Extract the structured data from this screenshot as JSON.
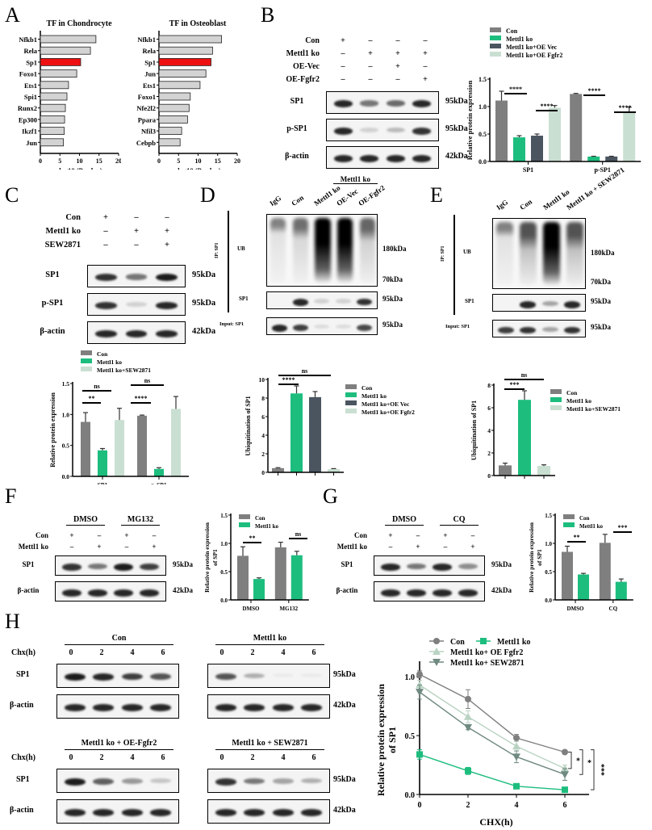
{
  "panels": {
    "A": {
      "label": "A"
    },
    "B": {
      "label": "B"
    },
    "C": {
      "label": "C"
    },
    "D": {
      "label": "D"
    },
    "E": {
      "label": "E"
    },
    "F": {
      "label": "F"
    },
    "G": {
      "label": "G"
    },
    "H": {
      "label": "H"
    }
  },
  "blots": {
    "B": {
      "conditions": [
        {
          "name": "Con",
          "signs": [
            "+",
            "–",
            "–",
            "–"
          ]
        },
        {
          "name": "Mettl1 ko",
          "signs": [
            "–",
            "+",
            "+",
            "+"
          ]
        },
        {
          "name": "OE-Vec",
          "signs": [
            "–",
            "–",
            "+",
            "–"
          ]
        },
        {
          "name": "OE-Fgfr2",
          "signs": [
            "–",
            "–",
            "–",
            "+"
          ]
        }
      ],
      "rows": [
        {
          "name": "SP1",
          "kda": "95kDa",
          "intensity": [
            0.9,
            0.55,
            0.6,
            0.9
          ]
        },
        {
          "name": "p-SP1",
          "kda": "95kDa",
          "intensity": [
            0.9,
            0.15,
            0.25,
            0.85
          ]
        },
        {
          "name": "β-actin",
          "kda": "42kDa",
          "intensity": [
            0.9,
            0.9,
            0.9,
            0.9
          ]
        }
      ]
    },
    "C": {
      "conditions": [
        {
          "name": "Con",
          "signs": [
            "+",
            "–",
            "–"
          ]
        },
        {
          "name": "Mettl1 ko",
          "signs": [
            "–",
            "+",
            "+"
          ]
        },
        {
          "name": "SEW2871",
          "signs": [
            "–",
            "–",
            "+"
          ]
        }
      ],
      "rows": [
        {
          "name": "SP1",
          "kda": "95kDa",
          "intensity": [
            0.85,
            0.55,
            0.95
          ]
        },
        {
          "name": "p-SP1",
          "kda": "95kDa",
          "intensity": [
            0.85,
            0.15,
            0.9
          ]
        },
        {
          "name": "β-actin",
          "kda": "42kDa",
          "intensity": [
            0.9,
            0.9,
            0.9
          ]
        }
      ]
    },
    "D": {
      "lanes": [
        "IgG",
        "Con",
        "Mettl1 ko",
        "OE-Vec",
        "OE-Fgfr2"
      ],
      "group_label": "Mettl1 ko",
      "ip_label": "IP: SP1",
      "ub_label": "UB",
      "sp1_label": "SP1",
      "input_label": "Input: SP1",
      "kda_180": "180kDa",
      "kda_70": "70kDa",
      "kda_95a": "95kDa",
      "kda_95b": "95kDa"
    },
    "E": {
      "lanes": [
        "IgG",
        "Con",
        "Mettl1 ko",
        "Mettl1 ko + SEW2871"
      ],
      "ip_label": "IP: SP1",
      "ub_label": "UB",
      "sp1_label": "SP1",
      "input_label": "Input: SP1",
      "kda_180": "180kDa",
      "kda_70": "70kDa",
      "kda_95a": "95kDa",
      "kda_95b": "95kDa"
    },
    "F": {
      "groups": [
        "DMSO",
        "MG132"
      ],
      "conditions": [
        {
          "name": "Con",
          "signs": [
            "+",
            "–",
            "+",
            "–"
          ]
        },
        {
          "name": "Mettl1 ko",
          "signs": [
            "–",
            "+",
            "–",
            "+"
          ]
        }
      ],
      "rows": [
        {
          "name": "SP1",
          "kda": "95kDa"
        },
        {
          "name": "β-actin",
          "kda": "42kDa"
        }
      ]
    },
    "G": {
      "groups": [
        "DMSO",
        "CQ"
      ],
      "conditions": [
        {
          "name": "Con",
          "signs": [
            "+",
            "–",
            "+",
            "–"
          ]
        },
        {
          "name": "Mettl1 ko",
          "signs": [
            "–",
            "+",
            "–",
            "+"
          ]
        }
      ],
      "rows": [
        {
          "name": "SP1",
          "kda": "95kDa"
        },
        {
          "name": "β-actin",
          "kda": "42kDa"
        }
      ]
    },
    "H": {
      "chx_label": "Chx(h)",
      "timepoints": [
        "0",
        "2",
        "4",
        "6"
      ],
      "groups": [
        "Con",
        "Mettl1 ko",
        "Mettl1 ko + OE-Fgfr2",
        "Mettl1 ko + SEW2871"
      ],
      "row_sp1": "SP1",
      "row_actin": "β-actin",
      "kda_sp1": "95kDa",
      "kda_actin": "42kDa"
    }
  },
  "colors": {
    "con": "#7f7f7f",
    "ko": "#1dbd7e",
    "ko_vec": "#4a5560",
    "ko_rescue": "#c9dfd2",
    "highlight": "#ee1111",
    "tf_bar": "#d3d3d3"
  },
  "chart_data": [
    {
      "id": "A-left",
      "type": "bar",
      "orientation": "horizontal",
      "title": "TF in Chondrocyte",
      "categories": [
        "Nfkb1",
        "Rela",
        "Sp1",
        "Foxo1",
        "Ets1",
        "Spi1",
        "Runx2",
        "Ep300",
        "Ikzf1",
        "Jun"
      ],
      "values": [
        14.2,
        12.8,
        10.3,
        9.3,
        7.2,
        6.8,
        6.4,
        6.2,
        6.1,
        5.9
      ],
      "highlight": "Sp1",
      "xlabel": "-log10 (P value)",
      "xlim": [
        0,
        20
      ],
      "xticks": [
        0,
        5,
        10,
        15,
        20
      ]
    },
    {
      "id": "A-right",
      "type": "bar",
      "orientation": "horizontal",
      "title": "TF in Osteoblast",
      "categories": [
        "Nfkb1",
        "Rela",
        "Sp1",
        "Jun",
        "Ets1",
        "Foxo1",
        "Nfe2l2",
        "Ppara",
        "Nfil3",
        "Cebpb"
      ],
      "values": [
        16.0,
        13.7,
        13.3,
        12.0,
        10.5,
        8.0,
        7.7,
        7.3,
        5.8,
        5.4
      ],
      "highlight": "Sp1",
      "xlabel": "-log10 (P value)",
      "xlim": [
        0,
        20
      ],
      "xticks": [
        0,
        5,
        10,
        15,
        20
      ]
    },
    {
      "id": "B",
      "type": "bar",
      "categories": [
        "SP1",
        "p-SP1"
      ],
      "series": [
        {
          "name": "Con",
          "values": [
            1.11,
            1.23
          ],
          "err": [
            0.17,
            0.01
          ]
        },
        {
          "name": "Mettl1 ko",
          "values": [
            0.44,
            0.09
          ],
          "err": [
            0.03,
            0.005
          ]
        },
        {
          "name": "Mettl1 ko+OE Vec",
          "values": [
            0.47,
            0.09
          ],
          "err": [
            0.03,
            0.005
          ]
        },
        {
          "name": "Mettl1 ko+OE Fgfr2",
          "values": [
            0.98,
            0.91
          ],
          "err": [
            0.04,
            0.08
          ]
        }
      ],
      "ylabel": "Relative protein expression",
      "ylim": [
        0,
        1.5
      ],
      "yticks": [
        0.0,
        0.5,
        1.0,
        1.5
      ],
      "annotations": [
        "****",
        "****",
        "****",
        "****"
      ]
    },
    {
      "id": "C",
      "type": "bar",
      "categories": [
        "SP1",
        "p-SP1"
      ],
      "series": [
        {
          "name": "Con",
          "values": [
            0.88,
            0.98
          ],
          "err": [
            0.15,
            0.01
          ]
        },
        {
          "name": "Mettl1 ko",
          "values": [
            0.42,
            0.12
          ],
          "err": [
            0.03,
            0.02
          ]
        },
        {
          "name": "Mettl1 ko+SEW2871",
          "values": [
            0.91,
            1.09
          ],
          "err": [
            0.19,
            0.2
          ]
        }
      ],
      "ylabel": "Relative protein expression",
      "ylim": [
        0,
        1.5
      ],
      "yticks": [
        0.0,
        0.5,
        1.0,
        1.5
      ],
      "annotations": [
        "**",
        "ns",
        "****",
        "ns"
      ]
    },
    {
      "id": "D",
      "type": "bar",
      "categories": [
        "Con",
        "Mettl1 ko",
        "Mettl1 ko+OE Vec",
        "Mettl1 ko+OE Fgfr2"
      ],
      "values": [
        0.45,
        8.5,
        8.1,
        0.35
      ],
      "err": [
        0.05,
        0.8,
        0.6,
        0.05
      ],
      "ylabel": "Ubiquitination of SP1",
      "ylim": [
        0,
        10
      ],
      "yticks": [
        0,
        2,
        4,
        6,
        8,
        10
      ],
      "annotations": [
        "****",
        "ns"
      ]
    },
    {
      "id": "E",
      "type": "bar",
      "categories": [
        "Con",
        "Mettl1 ko",
        "Mettl1 ko+SEW2871"
      ],
      "values": [
        0.9,
        6.7,
        0.85
      ],
      "err": [
        0.2,
        0.8,
        0.1
      ],
      "ylabel": "Ubiquitination of SP1",
      "ylim": [
        0,
        8
      ],
      "yticks": [
        0,
        2,
        4,
        6,
        8
      ],
      "annotations": [
        "***",
        "ns"
      ]
    },
    {
      "id": "F",
      "type": "bar",
      "categories": [
        "DMSO",
        "MG132"
      ],
      "series": [
        {
          "name": "Con",
          "values": [
            0.78,
            0.93
          ],
          "err": [
            0.16,
            0.09
          ]
        },
        {
          "name": "Mettl1 ko",
          "values": [
            0.37,
            0.79
          ],
          "err": [
            0.02,
            0.07
          ]
        }
      ],
      "ylabel": "Relative protein expression of SP1",
      "ylim": [
        0,
        1.5
      ],
      "yticks": [
        0.0,
        0.5,
        1.0,
        1.5
      ],
      "annotations": [
        "**",
        "ns"
      ]
    },
    {
      "id": "G",
      "type": "bar",
      "categories": [
        "DMSO",
        "CQ"
      ],
      "series": [
        {
          "name": "Con",
          "values": [
            0.85,
            1.01
          ],
          "err": [
            0.1,
            0.15
          ]
        },
        {
          "name": "Mettl1 ko",
          "values": [
            0.45,
            0.32
          ],
          "err": [
            0.02,
            0.05
          ]
        }
      ],
      "ylabel": "Relative protein expression of SP1",
      "ylim": [
        0,
        1.5
      ],
      "yticks": [
        0.0,
        0.5,
        1.0,
        1.5
      ],
      "annotations": [
        "**",
        "***"
      ]
    },
    {
      "id": "H",
      "type": "line",
      "x": [
        0,
        2,
        4,
        6
      ],
      "series": [
        {
          "name": "Con",
          "marker": "circle",
          "values": [
            1.02,
            0.81,
            0.48,
            0.36
          ],
          "err": [
            0.03,
            0.08,
            0.03,
            0.01
          ]
        },
        {
          "name": "Mettl1 ko",
          "marker": "square",
          "values": [
            0.34,
            0.2,
            0.07,
            0.04
          ],
          "err": [
            0.04,
            0.03,
            0.01,
            0.01
          ]
        },
        {
          "name": "Mettl1 ko+ OE Fgfr2",
          "marker": "triangle-up",
          "values": [
            0.93,
            0.66,
            0.41,
            0.22
          ],
          "err": [
            0.04,
            0.05,
            0.04,
            0.03
          ]
        },
        {
          "name": "Mettl1 ko+ SEW2871",
          "marker": "triangle-down",
          "values": [
            0.87,
            0.57,
            0.32,
            0.17
          ],
          "err": [
            0.06,
            0.02,
            0.05,
            0.05
          ]
        }
      ],
      "xlabel": "CHX(h)",
      "ylabel": "Relative protein expression of SP1",
      "ylim": [
        0,
        1.2
      ],
      "yticks": [
        0.0,
        0.5,
        1.0
      ],
      "xticks": [
        0,
        2,
        4,
        6
      ],
      "annotations": [
        "*",
        "*",
        "***"
      ]
    }
  ]
}
